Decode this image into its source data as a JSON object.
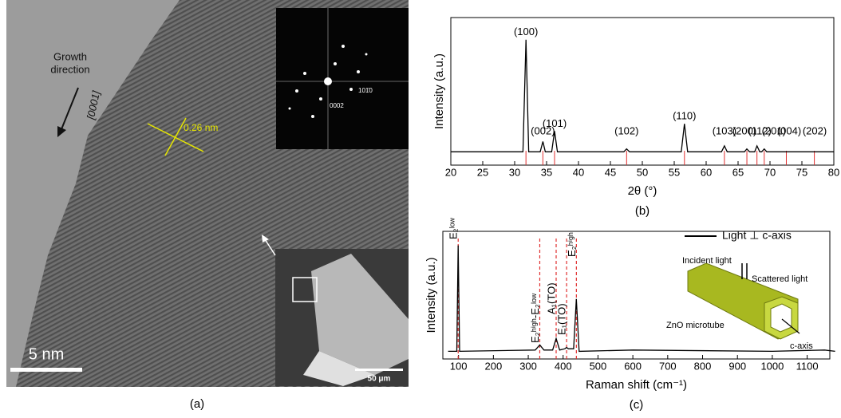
{
  "panel_a": {
    "growth_direction": [
      "Growth",
      "direction"
    ],
    "direction_index": "[0001]",
    "lattice_spacing": "0.26 nm",
    "fft_spots": [
      "101̄0",
      "0002"
    ],
    "scale_bar": "5 nm",
    "sem_scale_bar": "50 μm",
    "panel_label": "(a)"
  },
  "chart_data": [
    {
      "type": "line",
      "xlabel": "2θ (°)",
      "ylabel": "Intensity (a.u.)",
      "panel_label": "(b)",
      "x": [
        20,
        31.3,
        31.77,
        32.2,
        34.0,
        34.42,
        34.8,
        35.8,
        36.25,
        36.7,
        47.1,
        47.54,
        48.0,
        56.1,
        56.6,
        57.1,
        62.4,
        62.86,
        63.3,
        66.0,
        66.38,
        66.8,
        67.6,
        67.96,
        68.4,
        68.7,
        69.1,
        69.5,
        80
      ],
      "values": [
        9,
        9,
        85,
        9,
        9,
        16,
        9,
        9,
        23,
        9,
        9,
        11,
        9,
        9,
        28,
        9,
        9,
        13,
        9,
        9,
        11,
        9,
        9,
        13,
        9,
        9,
        11,
        9,
        9
      ],
      "color": "#000000",
      "xlim": [
        20,
        80
      ],
      "ylim": [
        0,
        100
      ],
      "xticks": [
        20,
        25,
        30,
        35,
        40,
        45,
        50,
        55,
        60,
        65,
        70,
        75,
        80
      ],
      "peak_labels": [
        {
          "label": "(100)",
          "x": 31.77
        },
        {
          "label": "(002)",
          "x": 34.42
        },
        {
          "label": "(101)",
          "x": 36.25
        },
        {
          "label": "(102)",
          "x": 47.54
        },
        {
          "label": "(110)",
          "x": 56.6
        },
        {
          "label": "(103)",
          "x": 62.86
        },
        {
          "label": "(200)",
          "x": 66.0
        },
        {
          "label": "(112)",
          "x": 68.4
        },
        {
          "label": "(201)",
          "x": 70.6
        },
        {
          "label": "(004)",
          "x": 73.0
        },
        {
          "label": "(202)",
          "x": 77.0
        }
      ],
      "reference_lines": {
        "x": [
          31.77,
          34.42,
          36.25,
          47.54,
          56.6,
          62.86,
          66.38,
          67.96,
          69.1,
          72.56,
          76.95
        ],
        "color": "#e03030"
      }
    },
    {
      "type": "line",
      "xlabel": "Raman shift (cm⁻¹)",
      "ylabel": "Intensity (a.u.)",
      "panel_label": "(c)",
      "x": [
        70,
        95,
        99,
        103,
        320,
        333,
        345,
        370,
        380,
        390,
        405,
        410,
        415,
        430,
        438,
        446,
        600,
        1000,
        1150,
        1180
      ],
      "series": [
        {
          "name": "Light ⊥ c-axis",
          "color": "#000000",
          "values": [
            6,
            6,
            89,
            6,
            7,
            11,
            7,
            7,
            16,
            7,
            8,
            9,
            8,
            8,
            47,
            6,
            7,
            6,
            7,
            6
          ]
        }
      ],
      "xlim": [
        55,
        1165
      ],
      "ylim": [
        0,
        100
      ],
      "xticks": [
        100,
        200,
        300,
        400,
        500,
        600,
        700,
        800,
        900,
        1000,
        1100
      ],
      "peak_labels": [
        {
          "label": "E₂ˡᵒʷ",
          "x": 99
        },
        {
          "label": "E₂ʰⁱᵍʰ-E₂ˡᵒʷ",
          "x": 333
        },
        {
          "label": "A₁(TO)",
          "x": 380
        },
        {
          "label": "E₁(TO)",
          "x": 410
        },
        {
          "label": "E₂ʰⁱᵍʰ",
          "x": 438
        }
      ],
      "peak_line_color": "#e03030",
      "inset": {
        "incident": "Incident light",
        "scattered": "Scattered light",
        "tube": "ZnO microtube",
        "axis": "c-axis"
      }
    }
  ]
}
